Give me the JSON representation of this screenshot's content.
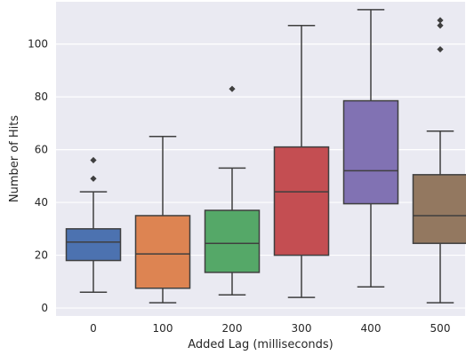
{
  "chart_data": {
    "type": "box",
    "xlabel": "Added Lag (milliseconds)",
    "ylabel": "Number of Hits",
    "ylim": [
      -3,
      116
    ],
    "yticks": [
      0,
      20,
      40,
      60,
      80,
      100
    ],
    "grid": true,
    "background": "#eaeaf2",
    "categories": [
      "0",
      "100",
      "200",
      "300",
      "400",
      "500"
    ],
    "boxes": [
      {
        "category": "0",
        "whisker_low": 6,
        "q1": 18,
        "median": 25,
        "q3": 30,
        "whisker_high": 44,
        "outliers": [
          49,
          56
        ],
        "color": "#4c72b0"
      },
      {
        "category": "100",
        "whisker_low": 2,
        "q1": 7.5,
        "median": 20.5,
        "q3": 35,
        "whisker_high": 65,
        "outliers": [],
        "color": "#dd8452"
      },
      {
        "category": "200",
        "whisker_low": 5,
        "q1": 13.5,
        "median": 24.5,
        "q3": 37,
        "whisker_high": 53,
        "outliers": [
          83
        ],
        "color": "#55a868"
      },
      {
        "category": "300",
        "whisker_low": 4,
        "q1": 20,
        "median": 44,
        "q3": 61,
        "whisker_high": 107,
        "outliers": [],
        "color": "#c44e52"
      },
      {
        "category": "400",
        "whisker_low": 8,
        "q1": 39.5,
        "median": 52,
        "q3": 78.5,
        "whisker_high": 113,
        "outliers": [],
        "color": "#8172b3"
      },
      {
        "category": "500",
        "whisker_low": 2,
        "q1": 24.5,
        "median": 35,
        "q3": 50.5,
        "whisker_high": 67,
        "outliers": [
          98,
          107,
          109
        ],
        "color": "#937860"
      }
    ],
    "line_color": "#3f3f3f"
  }
}
